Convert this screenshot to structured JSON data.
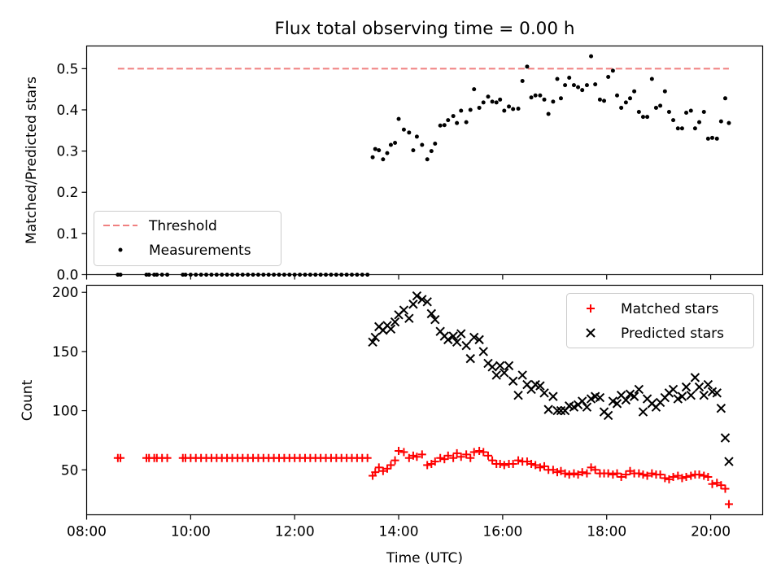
{
  "title": "Flux total observing time = 0.00 h",
  "chart_data": [
    {
      "type": "scatter",
      "ylabel": "Matched/Predicted stars",
      "xlabel": "",
      "xlim": [
        8.0,
        21.0
      ],
      "ylim": [
        0.0,
        0.555
      ],
      "yticks": [
        "0.0",
        "0.1",
        "0.2",
        "0.3",
        "0.4",
        "0.5"
      ],
      "grid": false,
      "legend_position": "lower-left",
      "series": [
        {
          "name": "Threshold",
          "style": "dashed-line",
          "color": "#f08080",
          "x": [
            8.6,
            20.35
          ],
          "y": [
            0.5,
            0.5
          ]
        },
        {
          "name": "Measurements",
          "style": "dot",
          "color": "#000000",
          "x": [
            8.6,
            8.65,
            9.15,
            9.2,
            9.3,
            9.35,
            9.45,
            9.55,
            9.85,
            9.9,
            10.0,
            10.1,
            10.2,
            10.3,
            10.4,
            10.5,
            10.6,
            10.7,
            10.8,
            10.9,
            11.0,
            11.1,
            11.2,
            11.3,
            11.4,
            11.5,
            11.6,
            11.7,
            11.8,
            11.9,
            12.0,
            12.1,
            12.2,
            12.3,
            12.4,
            12.5,
            12.6,
            12.7,
            12.8,
            12.9,
            13.0,
            13.1,
            13.2,
            13.3,
            13.4,
            13.5,
            13.55,
            13.62,
            13.7,
            13.78,
            13.85,
            13.93,
            14.0,
            14.1,
            14.2,
            14.28,
            14.35,
            14.45,
            14.55,
            14.63,
            14.7,
            14.8,
            14.88,
            14.95,
            15.05,
            15.12,
            15.2,
            15.3,
            15.38,
            15.45,
            15.55,
            15.63,
            15.72,
            15.8,
            15.88,
            15.95,
            16.03,
            16.12,
            16.2,
            16.3,
            16.38,
            16.47,
            16.55,
            16.63,
            16.72,
            16.8,
            16.88,
            16.97,
            17.05,
            17.12,
            17.2,
            17.28,
            17.37,
            17.45,
            17.53,
            17.62,
            17.7,
            17.78,
            17.87,
            17.95,
            18.03,
            18.12,
            18.2,
            18.28,
            18.37,
            18.45,
            18.53,
            18.62,
            18.7,
            18.78,
            18.87,
            18.95,
            19.03,
            19.12,
            19.2,
            19.28,
            19.37,
            19.45,
            19.53,
            19.62,
            19.7,
            19.78,
            19.87,
            19.95,
            20.03,
            20.12,
            20.2,
            20.28,
            20.35
          ],
          "y": [
            0,
            0,
            0,
            0,
            0,
            0,
            0,
            0,
            0,
            0,
            0,
            0,
            0,
            0,
            0,
            0,
            0,
            0,
            0,
            0,
            0,
            0,
            0,
            0,
            0,
            0,
            0,
            0,
            0,
            0,
            0,
            0,
            0,
            0,
            0,
            0,
            0,
            0,
            0,
            0,
            0,
            0,
            0,
            0,
            0,
            0.285,
            0.305,
            0.302,
            0.28,
            0.295,
            0.315,
            0.32,
            0.378,
            0.352,
            0.345,
            0.302,
            0.335,
            0.315,
            0.28,
            0.3,
            0.318,
            0.362,
            0.363,
            0.375,
            0.385,
            0.368,
            0.398,
            0.37,
            0.4,
            0.45,
            0.405,
            0.418,
            0.432,
            0.42,
            0.418,
            0.425,
            0.398,
            0.408,
            0.402,
            0.403,
            0.47,
            0.505,
            0.43,
            0.435,
            0.435,
            0.425,
            0.39,
            0.42,
            0.475,
            0.428,
            0.46,
            0.478,
            0.46,
            0.455,
            0.448,
            0.46,
            0.53,
            0.462,
            0.425,
            0.422,
            0.48,
            0.495,
            0.435,
            0.405,
            0.418,
            0.428,
            0.445,
            0.395,
            0.383,
            0.383,
            0.475,
            0.405,
            0.41,
            0.445,
            0.395,
            0.375,
            0.355,
            0.355,
            0.393,
            0.398,
            0.355,
            0.37,
            0.395,
            0.33,
            0.332,
            0.33,
            0.372,
            0.428,
            0.368
          ]
        }
      ]
    },
    {
      "type": "scatter",
      "ylabel": "Count",
      "xlabel": "Time (UTC)",
      "xlim": [
        8.0,
        21.0
      ],
      "ylim": [
        12,
        206
      ],
      "xticks": [
        "08:00",
        "10:00",
        "12:00",
        "14:00",
        "16:00",
        "18:00",
        "20:00"
      ],
      "yticks": [
        "50",
        "100",
        "150",
        "200"
      ],
      "grid": false,
      "legend_position": "top-right",
      "series": [
        {
          "name": "Matched stars",
          "style": "plus",
          "color": "#ff0000",
          "x": [
            8.6,
            8.65,
            9.15,
            9.2,
            9.3,
            9.35,
            9.45,
            9.55,
            9.85,
            9.9,
            10.0,
            10.1,
            10.2,
            10.3,
            10.4,
            10.5,
            10.6,
            10.7,
            10.8,
            10.9,
            11.0,
            11.1,
            11.2,
            11.3,
            11.4,
            11.5,
            11.6,
            11.7,
            11.8,
            11.9,
            12.0,
            12.1,
            12.2,
            12.3,
            12.4,
            12.5,
            12.6,
            12.7,
            12.8,
            12.9,
            13.0,
            13.1,
            13.2,
            13.3,
            13.4,
            13.5,
            13.55,
            13.62,
            13.7,
            13.78,
            13.85,
            13.93,
            14.0,
            14.1,
            14.2,
            14.28,
            14.35,
            14.45,
            14.55,
            14.63,
            14.7,
            14.8,
            14.88,
            14.95,
            15.05,
            15.12,
            15.2,
            15.3,
            15.38,
            15.45,
            15.55,
            15.63,
            15.72,
            15.8,
            15.88,
            15.95,
            16.03,
            16.12,
            16.2,
            16.3,
            16.38,
            16.47,
            16.55,
            16.63,
            16.72,
            16.8,
            16.88,
            16.97,
            17.05,
            17.12,
            17.2,
            17.28,
            17.37,
            17.45,
            17.53,
            17.62,
            17.7,
            17.78,
            17.87,
            17.95,
            18.03,
            18.12,
            18.2,
            18.28,
            18.37,
            18.45,
            18.53,
            18.62,
            18.7,
            18.78,
            18.87,
            18.95,
            19.03,
            19.12,
            19.2,
            19.28,
            19.37,
            19.45,
            19.53,
            19.62,
            19.7,
            19.78,
            19.87,
            19.95,
            20.03,
            20.12,
            20.2,
            20.28,
            20.35
          ],
          "y": [
            60,
            60,
            60,
            60,
            60,
            60,
            60,
            60,
            60,
            60,
            60,
            60,
            60,
            60,
            60,
            60,
            60,
            60,
            60,
            60,
            60,
            60,
            60,
            60,
            60,
            60,
            60,
            60,
            60,
            60,
            60,
            60,
            60,
            60,
            60,
            60,
            60,
            60,
            60,
            60,
            60,
            60,
            60,
            60,
            60,
            45,
            48,
            52,
            49,
            51,
            54,
            58,
            66,
            65,
            60,
            62,
            61,
            63,
            54,
            55,
            57,
            60,
            59,
            62,
            60,
            64,
            61,
            63,
            60,
            65,
            66,
            65,
            62,
            58,
            55,
            55,
            54,
            55,
            55,
            58,
            57,
            57,
            55,
            54,
            52,
            53,
            50,
            50,
            48,
            49,
            47,
            46,
            47,
            46,
            48,
            47,
            52,
            50,
            47,
            47,
            47,
            46,
            47,
            44,
            46,
            49,
            47,
            47,
            46,
            45,
            47,
            46,
            46,
            43,
            42,
            44,
            45,
            43,
            44,
            45,
            46,
            46,
            45,
            44,
            38,
            39,
            37,
            34,
            21
          ]
        },
        {
          "name": "Predicted stars",
          "style": "x",
          "color": "#000000",
          "x": [
            13.5,
            13.55,
            13.62,
            13.7,
            13.78,
            13.85,
            13.93,
            14.0,
            14.1,
            14.2,
            14.28,
            14.35,
            14.45,
            14.55,
            14.63,
            14.7,
            14.8,
            14.88,
            14.95,
            15.05,
            15.12,
            15.2,
            15.3,
            15.38,
            15.45,
            15.55,
            15.63,
            15.72,
            15.8,
            15.88,
            15.95,
            16.03,
            16.12,
            16.2,
            16.3,
            16.38,
            16.47,
            16.55,
            16.63,
            16.72,
            16.8,
            16.88,
            16.97,
            17.05,
            17.12,
            17.2,
            17.28,
            17.37,
            17.45,
            17.53,
            17.62,
            17.7,
            17.78,
            17.87,
            17.95,
            18.03,
            18.12,
            18.2,
            18.28,
            18.37,
            18.45,
            18.53,
            18.62,
            18.7,
            18.78,
            18.87,
            18.95,
            19.03,
            19.12,
            19.2,
            19.28,
            19.37,
            19.45,
            19.53,
            19.62,
            19.7,
            19.78,
            19.87,
            19.95,
            20.03,
            20.12,
            20.2,
            20.28,
            20.35
          ],
          "y": [
            158,
            162,
            171,
            168,
            172,
            169,
            175,
            181,
            185,
            178,
            190,
            197,
            194,
            192,
            182,
            177,
            167,
            163,
            160,
            163,
            158,
            165,
            155,
            144,
            162,
            160,
            150,
            140,
            137,
            130,
            138,
            132,
            138,
            125,
            113,
            130,
            122,
            118,
            122,
            121,
            115,
            101,
            112,
            100,
            100,
            100,
            104,
            103,
            105,
            108,
            103,
            110,
            112,
            111,
            99,
            96,
            108,
            106,
            113,
            109,
            114,
            112,
            118,
            99,
            110,
            106,
            103,
            107,
            111,
            115,
            118,
            110,
            112,
            120,
            113,
            128,
            120,
            113,
            122,
            116,
            115,
            102,
            77,
            57
          ]
        }
      ]
    }
  ]
}
